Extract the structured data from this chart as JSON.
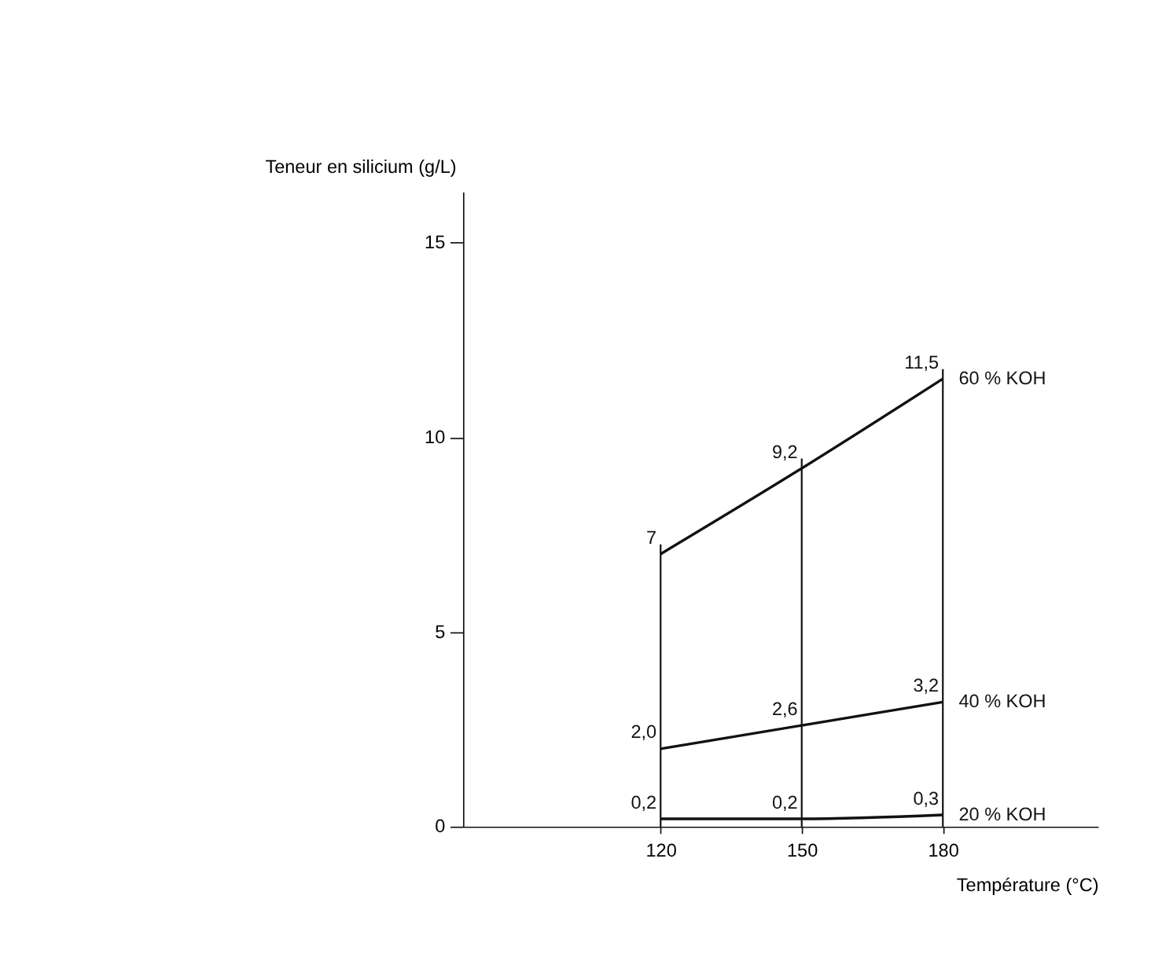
{
  "chart_data": {
    "type": "line",
    "xlabel": "Température (°C)",
    "ylabel": "Teneur en silicium  (g/L)",
    "x": [
      120,
      150,
      180
    ],
    "series": [
      {
        "name": "60 % KOH",
        "color": "#111111",
        "values": [
          7,
          9.2,
          11.5
        ],
        "value_labels": [
          "7",
          "9,2",
          "11,5"
        ]
      },
      {
        "name": "40 % KOH",
        "color": "#111111",
        "values": [
          2.0,
          2.6,
          3.2
        ],
        "value_labels": [
          "2,0",
          "2,6",
          "3,2"
        ]
      },
      {
        "name": "20 % KOH",
        "color": "#111111",
        "values": [
          0.2,
          0.2,
          0.3
        ],
        "value_labels": [
          "0,2",
          "0,2",
          "0,3"
        ]
      }
    ],
    "xlim": [
      78,
      213
    ],
    "xticks": [
      120,
      150,
      180
    ],
    "ylim": [
      0,
      16.3
    ],
    "yticks": [
      0,
      5,
      10,
      15
    ],
    "ref_lines": [
      {
        "axis": "x",
        "value": 120,
        "label": null
      },
      {
        "axis": "x",
        "value": 150,
        "label": null
      },
      {
        "axis": "x",
        "value": 180,
        "label": null
      }
    ],
    "grid": false,
    "legend": false,
    "marker": "none",
    "line_style": "solid"
  }
}
